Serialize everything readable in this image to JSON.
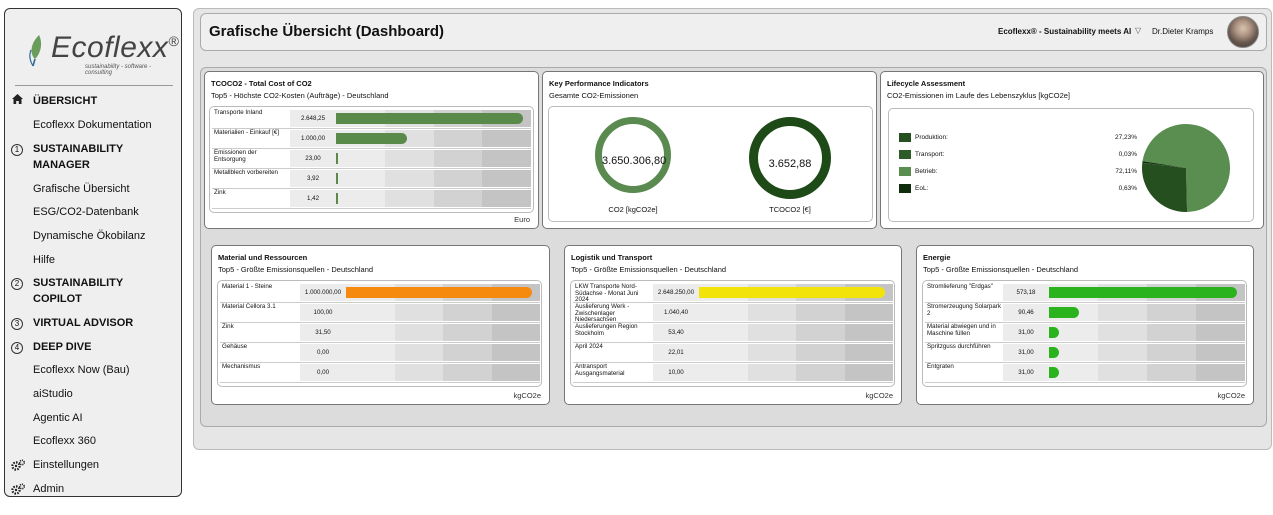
{
  "sidebar": {
    "brand": "Ecoflexx",
    "brand_mark": "®",
    "tagline": "sustainability - software - consulting",
    "items": [
      {
        "label": "ÜBERSICHT",
        "icon": "home-icon",
        "bold": true
      },
      {
        "label": "Ecoflexx Dokumentation",
        "bold": false
      },
      {
        "label": "SUSTAINABILITY",
        "label2": "MANAGER",
        "icon": "1",
        "bold": true
      },
      {
        "label": "Grafische Übersicht",
        "bold": false
      },
      {
        "label": "ESG/CO2-Datenbank",
        "bold": false
      },
      {
        "label": "Dynamische Ökobilanz",
        "bold": false
      },
      {
        "label": "Hilfe",
        "bold": false
      },
      {
        "label": "SUSTAINABILITY",
        "label2": "COPILOT",
        "icon": "2",
        "bold": true
      },
      {
        "label": "VIRTUAL ADVISOR",
        "icon": "3",
        "bold": true
      },
      {
        "label": "DEEP DIVE",
        "icon": "4",
        "bold": true
      },
      {
        "label": "Ecoflexx Now (Bau)",
        "bold": false
      },
      {
        "label": "aiStudio",
        "bold": false
      },
      {
        "label": "Agentic AI",
        "bold": false
      },
      {
        "label": "Ecoflexx 360",
        "bold": false
      },
      {
        "label": "Einstellungen",
        "icon": "gears-icon",
        "bold": false
      },
      {
        "label": "Admin",
        "icon": "gears-icon",
        "bold": false
      }
    ]
  },
  "header": {
    "title": "Grafische Übersicht (Dashboard)",
    "brand_slogan": "Ecoflexx® - Sustainability meets AI",
    "user": "Dr.Dieter Kramps"
  },
  "tcoco2": {
    "title": "TCOCO2 - Total Cost of CO2",
    "subtitle": "Top5 - Höchste CO2-Kosten (Aufträge) - Deutschland",
    "unit": "Euro",
    "color": "#5a8a4a",
    "rows": [
      {
        "label": "Transporte Inland",
        "value": "2.648,25",
        "fraction": 1.0
      },
      {
        "label": "Materialien - Einkauf [€]",
        "value": "1.000,00",
        "fraction": 0.38
      },
      {
        "label": "Emissionen der Entsorgung",
        "value": "23,00",
        "fraction": 0.01
      },
      {
        "label": "Metallblech vorbereiten",
        "value": "3,92",
        "fraction": 0.005
      },
      {
        "label": "Zink",
        "value": "1,42",
        "fraction": 0.003
      }
    ]
  },
  "kpi": {
    "title": "Key Performance Indicators",
    "subtitle": "Gesamte CO2-Emissionen",
    "ring1_value": "3.650.306,80",
    "ring1_label": "CO2 [kgCO2e]",
    "ring1_color": "#5a8a50",
    "ring2_value": "3.652,88",
    "ring2_label": "TCOCO2 [€]",
    "ring2_color": "#1e4a18"
  },
  "lca": {
    "title": "Lifecycle Assessment",
    "subtitle": "CO2-Emissionen im Laufe des Lebenszyklus [kgCO2e]",
    "legend": [
      {
        "label": "Produktion:",
        "percent": "27,23%",
        "value": 27.23,
        "color": "#254f1e"
      },
      {
        "label": "Transport:",
        "percent": "0,03%",
        "value": 0.03,
        "color": "#2f5b2a"
      },
      {
        "label": "Betrieb:",
        "percent": "72,11%",
        "value": 72.11,
        "color": "#5a8e50"
      },
      {
        "label": "EoL:",
        "percent": "0,63%",
        "value": 0.63,
        "color": "#0f2d0c"
      }
    ]
  },
  "material": {
    "title": "Material und Ressourcen",
    "subtitle": "Top5 - Größte Emissionsquellen - Deutschland",
    "unit": "kgCO2e",
    "color": "#f58a0f",
    "rows": [
      {
        "label": "Material 1 - Steine",
        "value": "1.000.000,00",
        "fraction": 1.0
      },
      {
        "label": "Material Cellora 3.1",
        "value": "100,00",
        "fraction": 0.0
      },
      {
        "label": "Zink",
        "value": "31,50",
        "fraction": 0.0
      },
      {
        "label": "Gehäuse",
        "value": "0,00",
        "fraction": 0.0
      },
      {
        "label": "Mechanismus",
        "value": "0,00",
        "fraction": 0.0
      }
    ]
  },
  "logistik": {
    "title": "Logistik und Transport",
    "subtitle": "Top5 - Größte Emissionsquellen - Deutschland",
    "unit": "kgCO2e",
    "color": "#f2e40b",
    "rows": [
      {
        "label": "LKW Transporte Nord-Südachse - Monat Juni 2024",
        "value": "2.648.250,00",
        "fraction": 1.0
      },
      {
        "label": "Auslieferung Werk - Zwischenlager Niedersachsen",
        "value": "1.040,40",
        "fraction": 0.0
      },
      {
        "label": "Auslieferungen Region Stockholm",
        "value": "53,40",
        "fraction": 0.0
      },
      {
        "label": "April 2024",
        "value": "22,01",
        "fraction": 0.0
      },
      {
        "label": "Antransport Ausgangsmaterial",
        "value": "10,00",
        "fraction": 0.0
      }
    ]
  },
  "energie": {
    "title": "Energie",
    "subtitle": "Top5 - Größte Emissionsquellen - Deutschland",
    "unit": "kgCO2e",
    "color": "#2bb31e",
    "rows": [
      {
        "label": "Stromlieferung \"Erdgas\"",
        "value": "573,18",
        "fraction": 1.0
      },
      {
        "label": "Stromerzeugung Solarpark 2",
        "value": "90,46",
        "fraction": 0.158
      },
      {
        "label": "Material abwiegen und in Maschine füllen",
        "value": "31,00",
        "fraction": 0.054
      },
      {
        "label": "Spritzguss durchführen",
        "value": "31,00",
        "fraction": 0.054
      },
      {
        "label": "Entgraten",
        "value": "31,00",
        "fraction": 0.054
      }
    ]
  }
}
